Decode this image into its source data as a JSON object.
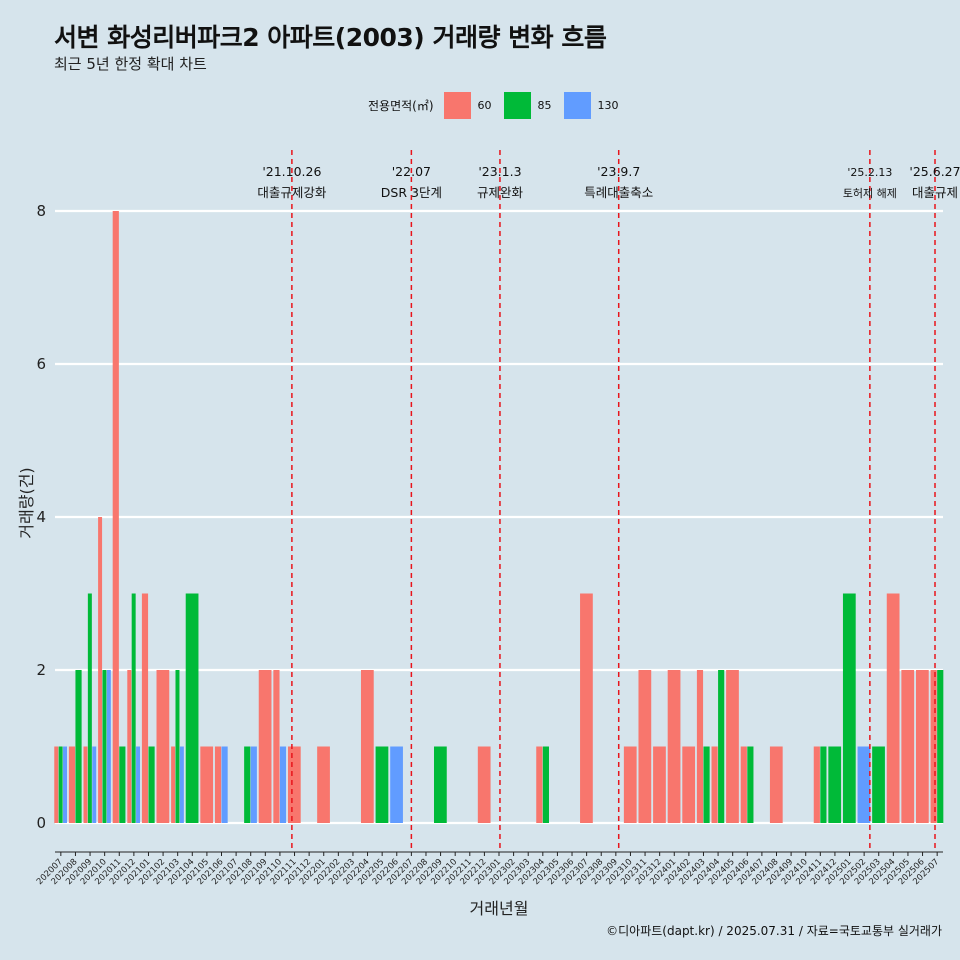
{
  "title": "서변 화성리버파크2 아파트(2003) 거래량 변화 흐름",
  "subtitle": "최근 5년 한정 확대 차트",
  "caption": "©디아파트(dapt.kr) / 2025.07.31 / 자료=국토교통부 실거래가",
  "legend": {
    "title": "전용면적(㎡)",
    "items": [
      {
        "label": "60",
        "color": "#f8766d"
      },
      {
        "label": "85",
        "color": "#00ba38"
      },
      {
        "label": "130",
        "color": "#619cff"
      }
    ]
  },
  "chart_data": {
    "type": "bar",
    "xlabel": "거래년월",
    "ylabel": "거래량(건)",
    "ylim": [
      0,
      8.4
    ],
    "yticks": [
      0,
      2,
      4,
      6,
      8
    ],
    "grid": true,
    "legend_position": "top",
    "categories": [
      "202007",
      "202008",
      "202009",
      "202010",
      "202011",
      "202012",
      "202101",
      "202102",
      "202103",
      "202104",
      "202105",
      "202106",
      "202107",
      "202108",
      "202109",
      "202110",
      "202111",
      "202112",
      "202201",
      "202202",
      "202203",
      "202204",
      "202205",
      "202206",
      "202207",
      "202208",
      "202209",
      "202210",
      "202211",
      "202212",
      "202301",
      "202302",
      "202303",
      "202304",
      "202305",
      "202306",
      "202307",
      "202308",
      "202309",
      "202310",
      "202311",
      "202312",
      "202401",
      "202402",
      "202403",
      "202404",
      "202405",
      "202406",
      "202407",
      "202408",
      "202409",
      "202410",
      "202411",
      "202412",
      "202501",
      "202502",
      "202503",
      "202504",
      "202505",
      "202506",
      "202507"
    ],
    "series": [
      {
        "name": "60",
        "color": "#f8766d",
        "values": [
          1,
          1,
          1,
          4,
          8,
          2,
          3,
          2,
          1,
          0,
          1,
          1,
          0,
          0,
          2,
          2,
          1,
          0,
          1,
          0,
          0,
          2,
          0,
          0,
          0,
          0,
          0,
          0,
          0,
          1,
          0,
          0,
          0,
          1,
          0,
          0,
          3,
          0,
          0,
          1,
          2,
          1,
          2,
          1,
          2,
          1,
          2,
          1,
          0,
          1,
          0,
          0,
          1,
          0,
          0,
          0,
          0,
          3,
          2,
          2,
          2
        ]
      },
      {
        "name": "85",
        "color": "#00ba38",
        "values": [
          1,
          2,
          3,
          2,
          1,
          3,
          1,
          0,
          2,
          3,
          0,
          0,
          0,
          1,
          0,
          0,
          0,
          0,
          0,
          0,
          0,
          0,
          1,
          0,
          0,
          0,
          1,
          0,
          0,
          0,
          0,
          0,
          0,
          1,
          0,
          0,
          0,
          0,
          0,
          0,
          0,
          0,
          0,
          0,
          1,
          2,
          0,
          1,
          0,
          0,
          0,
          0,
          1,
          1,
          3,
          0,
          1,
          0,
          0,
          0,
          2
        ]
      },
      {
        "name": "130",
        "color": "#619cff",
        "values": [
          1,
          0,
          1,
          2,
          0,
          1,
          0,
          0,
          1,
          0,
          0,
          1,
          0,
          1,
          0,
          1,
          0,
          0,
          0,
          0,
          0,
          0,
          0,
          1,
          0,
          0,
          0,
          0,
          0,
          0,
          0,
          0,
          0,
          0,
          0,
          0,
          0,
          0,
          0,
          0,
          0,
          0,
          0,
          0,
          0,
          0,
          0,
          0,
          0,
          0,
          0,
          0,
          0,
          0,
          0,
          1,
          0,
          0,
          0,
          0,
          0
        ]
      }
    ],
    "events": [
      {
        "date": "2021-10-26",
        "label1": "'21.10.26",
        "label2": "대출규제강화"
      },
      {
        "date": "2022-07",
        "label1": "'22.07",
        "label2": "DSR 3단계"
      },
      {
        "date": "2023-01-03",
        "label1": "'23.1.3",
        "label2": "규제완화"
      },
      {
        "date": "2023-09-07",
        "label1": "'23.9.7",
        "label2": "특례대출축소"
      },
      {
        "date": "2025-02-13",
        "label1": "'25.2.13",
        "label2": "토허제 해제"
      },
      {
        "date": "2025-06-27",
        "label1": "'25.6.27",
        "label2": "대출규제"
      }
    ]
  }
}
